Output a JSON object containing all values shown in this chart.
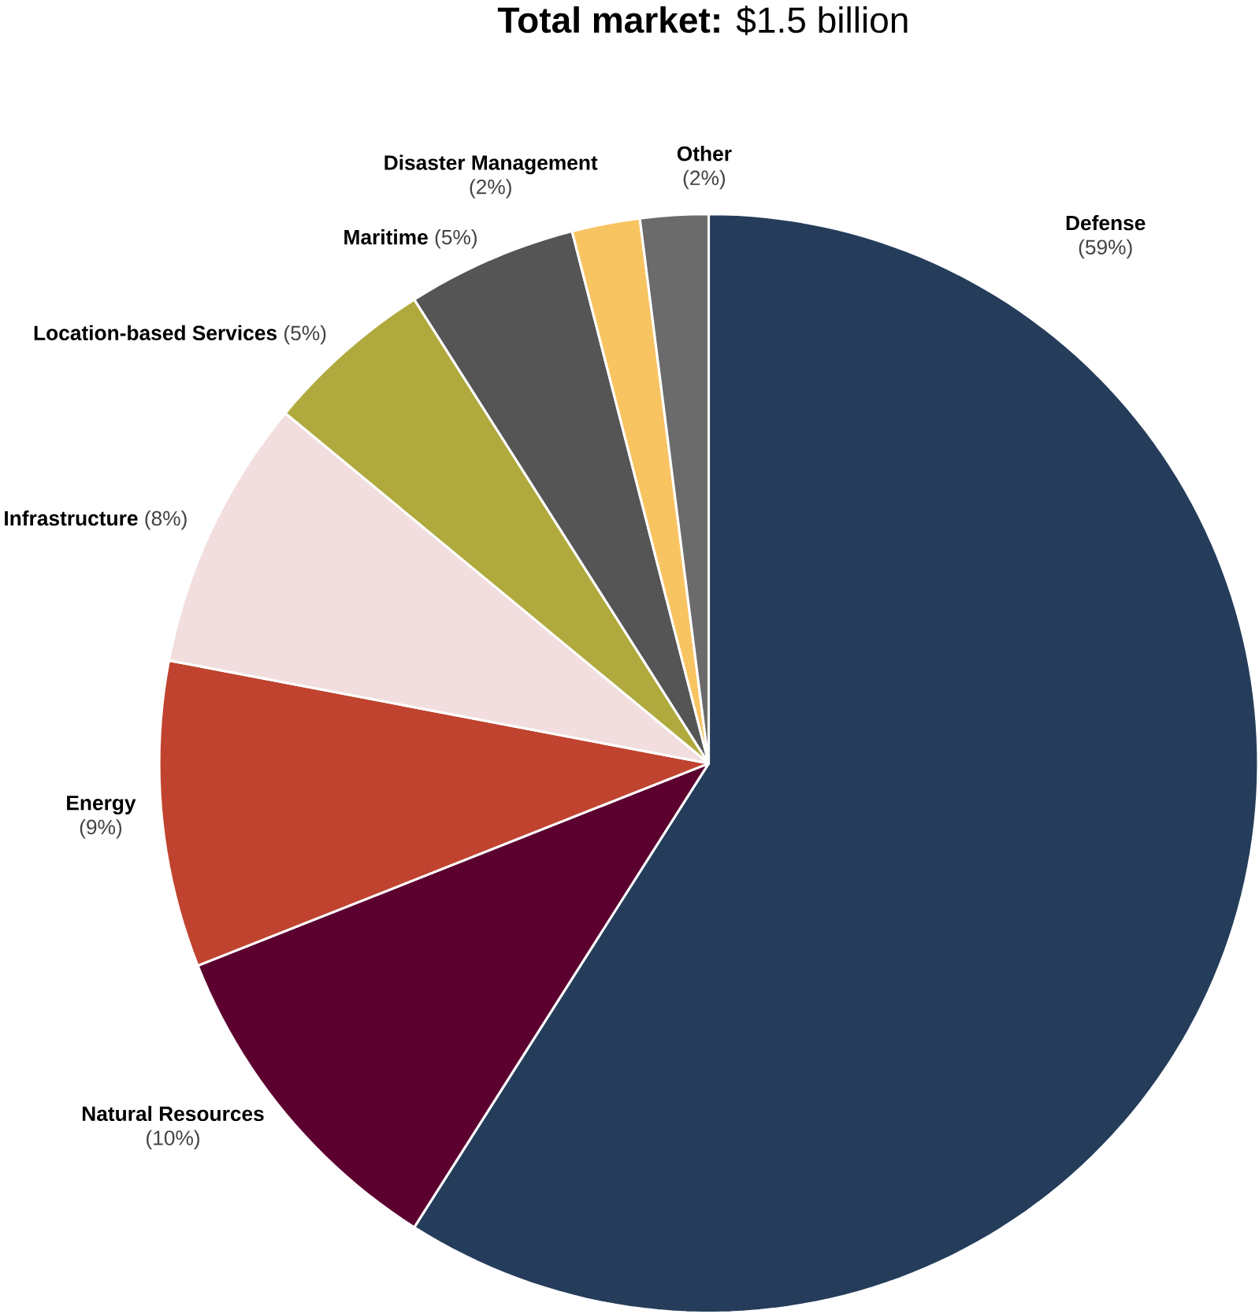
{
  "chart_data": {
    "type": "pie",
    "title": "**Total market:** $1.5 billion",
    "categories": [
      "Defense",
      "Natural Resources",
      "Energy",
      "Infrastructure",
      "Location-based Services",
      "Maritime",
      "Disaster Management",
      "Other"
    ],
    "values": [
      59,
      10,
      9,
      8,
      5,
      5,
      2,
      2
    ],
    "value_labels": [
      "(59%)",
      "(10%)",
      "(9%)",
      "(8%)",
      "(5%)",
      "(5%)",
      "(2%)",
      "(2%)"
    ],
    "colors": [
      "#253d5b",
      "#5c0030",
      "#c0432f",
      "#f2dede",
      "#b0aa3e",
      "#555555",
      "#f8c462",
      "#6b6b6b"
    ]
  }
}
